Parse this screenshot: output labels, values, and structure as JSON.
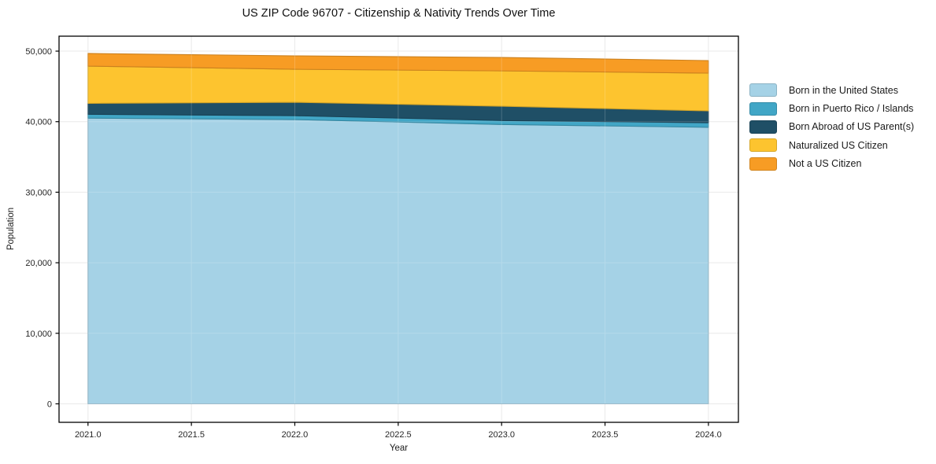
{
  "chart_data": {
    "type": "area",
    "stacked": true,
    "title": "US ZIP Code 96707 - Citizenship & Nativity Trends Over Time",
    "xlabel": "Year",
    "ylabel": "Population",
    "x": [
      2021,
      2022,
      2023,
      2024
    ],
    "series": [
      {
        "name": "Born in the United States",
        "color": "#a5d2e6",
        "values": [
          40500,
          40300,
          39600,
          39200
        ]
      },
      {
        "name": "Born in Puerto Rico / Islands",
        "color": "#41a6c6",
        "values": [
          550,
          550,
          560,
          650
        ]
      },
      {
        "name": "Born Abroad of US Parent(s)",
        "color": "#1f4f66",
        "values": [
          1550,
          1900,
          2030,
          1680
        ]
      },
      {
        "name": "Naturalized US Citizen",
        "color": "#fdc42f",
        "values": [
          5280,
          4680,
          5010,
          5350
        ]
      },
      {
        "name": "Not a US Citizen",
        "color": "#f79c24",
        "values": [
          1790,
          1900,
          1900,
          1780
        ]
      }
    ],
    "xlim": [
      2020.86,
      2024.145
    ],
    "ylim": [
      -2620,
      52120
    ],
    "xticks": [
      2021.0,
      2021.5,
      2022.0,
      2022.5,
      2023.0,
      2023.5,
      2024.0
    ],
    "xtick_labels": [
      "2021.0",
      "2021.5",
      "2022.0",
      "2022.5",
      "2023.0",
      "2023.5",
      "2024.0"
    ],
    "yticks": [
      0,
      10000,
      20000,
      30000,
      40000,
      50000
    ],
    "ytick_labels": [
      "0",
      "10,000",
      "20,000",
      "30,000",
      "40,000",
      "50,000"
    ],
    "grid": true,
    "grid_color": "#e6e6e6",
    "spine_color": "#000000",
    "tick_text_color": "#262626",
    "background_color": "#ffffff",
    "legend_position": "right"
  }
}
